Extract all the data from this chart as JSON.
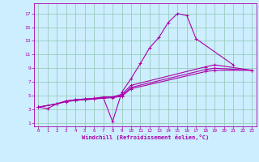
{
  "background_color": "#cceeff",
  "grid_color": "#99ccbb",
  "line_color": "#aa00aa",
  "marker_color": "#aa00aa",
  "xlabel": "Windchill (Refroidissement éolien,°C)",
  "ytick_labels": [
    "1",
    "3",
    "5",
    "7",
    "9",
    "11",
    "13",
    "15",
    "17"
  ],
  "ytick_vals": [
    1,
    3,
    5,
    7,
    9,
    11,
    13,
    15,
    17
  ],
  "xtick_vals": [
    0,
    1,
    2,
    3,
    4,
    5,
    6,
    7,
    8,
    9,
    10,
    11,
    12,
    13,
    14,
    15,
    16,
    17,
    18,
    19,
    20,
    21,
    22,
    23
  ],
  "xlim": [
    -0.5,
    23.5
  ],
  "ylim": [
    0.5,
    18.5
  ],
  "curve_data_clean": [
    {
      "x": [
        0,
        1,
        2,
        3,
        4,
        5,
        6,
        7,
        8,
        9,
        10,
        11,
        12,
        13,
        14,
        15,
        16,
        17,
        21
      ],
      "y": [
        3.3,
        3.1,
        3.8,
        4.2,
        4.4,
        4.5,
        4.6,
        4.7,
        1.2,
        5.5,
        7.5,
        9.7,
        12.0,
        13.5,
        15.7,
        17.0,
        16.7,
        13.3,
        9.5
      ]
    },
    {
      "x": [
        0,
        2,
        3,
        4,
        5,
        6,
        7,
        8,
        9,
        10,
        18,
        19,
        23
      ],
      "y": [
        3.3,
        3.8,
        4.2,
        4.4,
        4.5,
        4.6,
        4.8,
        4.8,
        5.2,
        6.5,
        9.2,
        9.5,
        8.7
      ]
    },
    {
      "x": [
        0,
        2,
        3,
        4,
        5,
        6,
        7,
        8,
        9,
        10,
        18,
        19,
        23
      ],
      "y": [
        3.3,
        3.8,
        4.2,
        4.3,
        4.4,
        4.5,
        4.7,
        4.8,
        5.0,
        6.2,
        8.8,
        9.0,
        8.7
      ]
    },
    {
      "x": [
        0,
        2,
        3,
        4,
        5,
        6,
        7,
        8,
        9,
        10,
        18,
        19,
        23
      ],
      "y": [
        3.3,
        3.8,
        4.1,
        4.3,
        4.4,
        4.5,
        4.6,
        4.7,
        4.9,
        6.0,
        8.5,
        8.7,
        8.7
      ]
    }
  ]
}
